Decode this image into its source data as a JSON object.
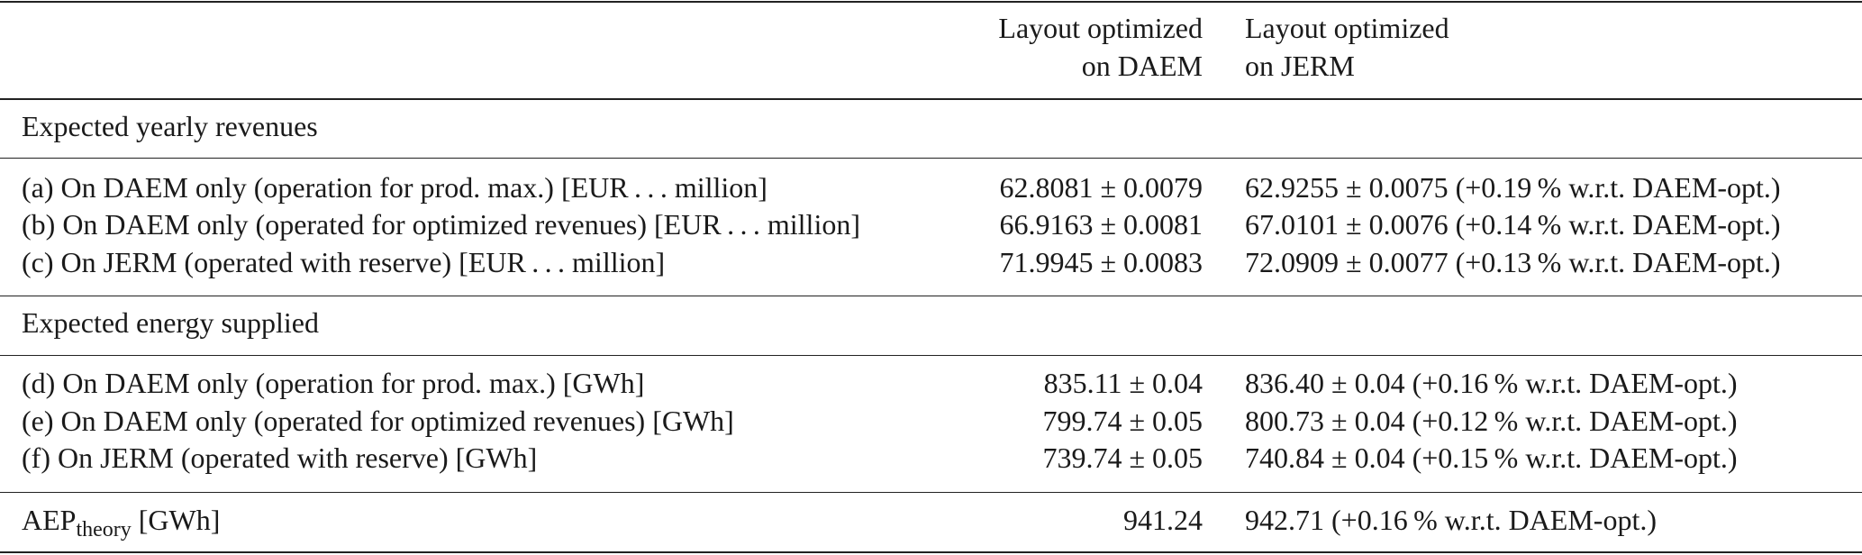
{
  "header": {
    "col_daem": [
      "Layout optimized",
      "on DAEM"
    ],
    "col_jerm": [
      "Layout optimized",
      "on JERM"
    ]
  },
  "sections": [
    {
      "title": "Expected yearly revenues",
      "rows": [
        {
          "label": "(a) On DAEM only (operation for prod. max.) [EUR . . . million]",
          "daem": "62.8081 ± 0.0079",
          "jerm": "62.9255 ± 0.0075 (+0.19 % w.r.t. DAEM-opt.)"
        },
        {
          "label": "(b) On DAEM only (operated for optimized revenues) [EUR . . . million]",
          "daem": "66.9163 ± 0.0081",
          "jerm": "67.0101 ± 0.0076 (+0.14 % w.r.t. DAEM-opt.)"
        },
        {
          "label": "(c) On JERM (operated with reserve) [EUR . . . million]",
          "daem": "71.9945 ± 0.0083",
          "jerm": "72.0909 ± 0.0077 (+0.13 % w.r.t. DAEM-opt.)"
        }
      ]
    },
    {
      "title": "Expected energy supplied",
      "rows": [
        {
          "label": "(d) On DAEM only (operation for prod. max.) [GWh]",
          "daem": "835.11 ± 0.04",
          "jerm": "836.40 ± 0.04 (+0.16 % w.r.t. DAEM-opt.)"
        },
        {
          "label": "(e) On DAEM only (operated for optimized revenues) [GWh]",
          "daem": "799.74 ± 0.05",
          "jerm": "800.73 ± 0.04 (+0.12 % w.r.t. DAEM-opt.)"
        },
        {
          "label": "(f) On JERM (operated with reserve) [GWh]",
          "daem": "739.74 ± 0.05",
          "jerm": "740.84 ± 0.04 (+0.15 % w.r.t. DAEM-opt.)"
        }
      ]
    }
  ],
  "aep": {
    "label_main": "AEP",
    "label_sub": "theory",
    "label_unit": " [GWh]",
    "daem": "941.24",
    "jerm": "942.71 (+0.16 % w.r.t. DAEM-opt.)"
  }
}
